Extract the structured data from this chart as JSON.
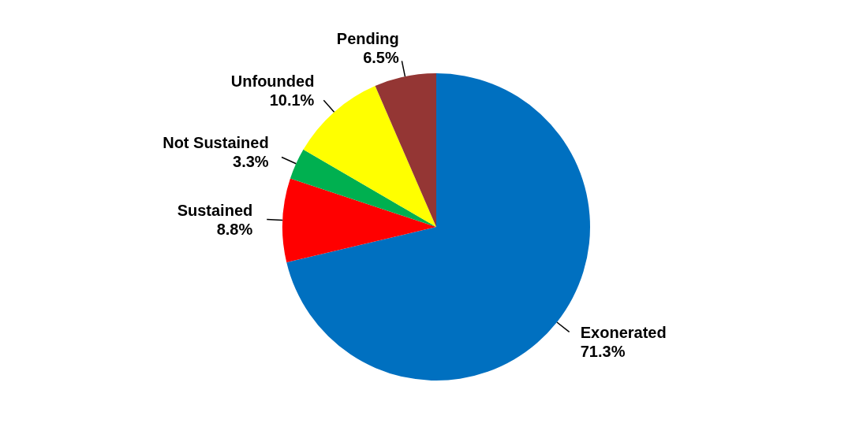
{
  "chart_data": {
    "type": "pie",
    "categories": [
      "Exonerated",
      "Sustained",
      "Not Sustained",
      "Unfounded",
      "Pending"
    ],
    "values": [
      71.3,
      8.8,
      3.3,
      10.1,
      6.5
    ],
    "value_labels": [
      "71.3%",
      "8.8%",
      "3.3%",
      "10.1%",
      "6.5%"
    ],
    "colors": [
      "#0070c0",
      "#ff0000",
      "#00b050",
      "#ffff00",
      "#943634"
    ],
    "legend": false
  }
}
